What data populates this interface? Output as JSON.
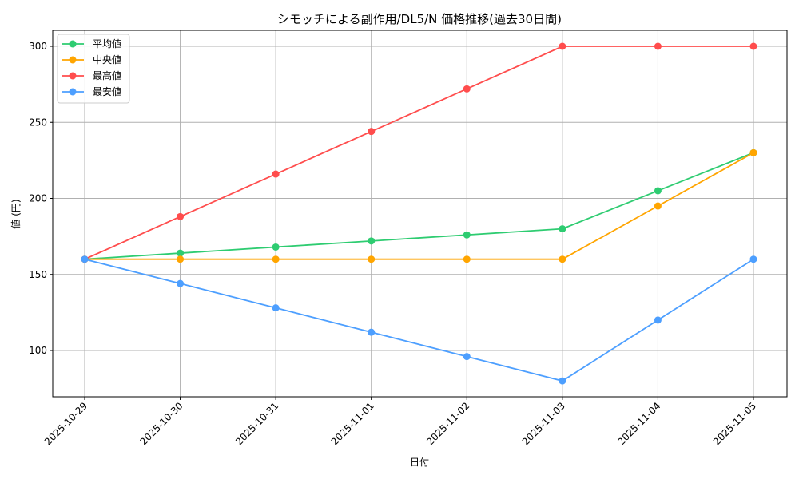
{
  "chart_data": {
    "type": "line",
    "title": "シモッチによる副作用/DL5/N 価格推移(過去30日間)",
    "xlabel": "日付",
    "ylabel": "値 (円)",
    "categories": [
      "2025-10-29",
      "2025-10-30",
      "2025-10-31",
      "2025-11-01",
      "2025-11-02",
      "2025-11-03",
      "2025-11-04",
      "2025-11-05"
    ],
    "yticks": [
      100,
      150,
      200,
      250,
      300
    ],
    "ylim": [
      70,
      311
    ],
    "grid": true,
    "legend_position": "upper left",
    "series": [
      {
        "name": "平均値",
        "color": "#2ecc71",
        "values": [
          160,
          164,
          168,
          172,
          176,
          180,
          205,
          230
        ]
      },
      {
        "name": "中央値",
        "color": "#ffa500",
        "values": [
          160,
          160,
          160,
          160,
          160,
          160,
          195,
          230
        ]
      },
      {
        "name": "最高値",
        "color": "#ff4d4d",
        "values": [
          160,
          188,
          216,
          244,
          272,
          300,
          300,
          300
        ]
      },
      {
        "name": "最安値",
        "color": "#4d9fff",
        "values": [
          160,
          144,
          128,
          112,
          96,
          80,
          120,
          160
        ]
      }
    ]
  }
}
